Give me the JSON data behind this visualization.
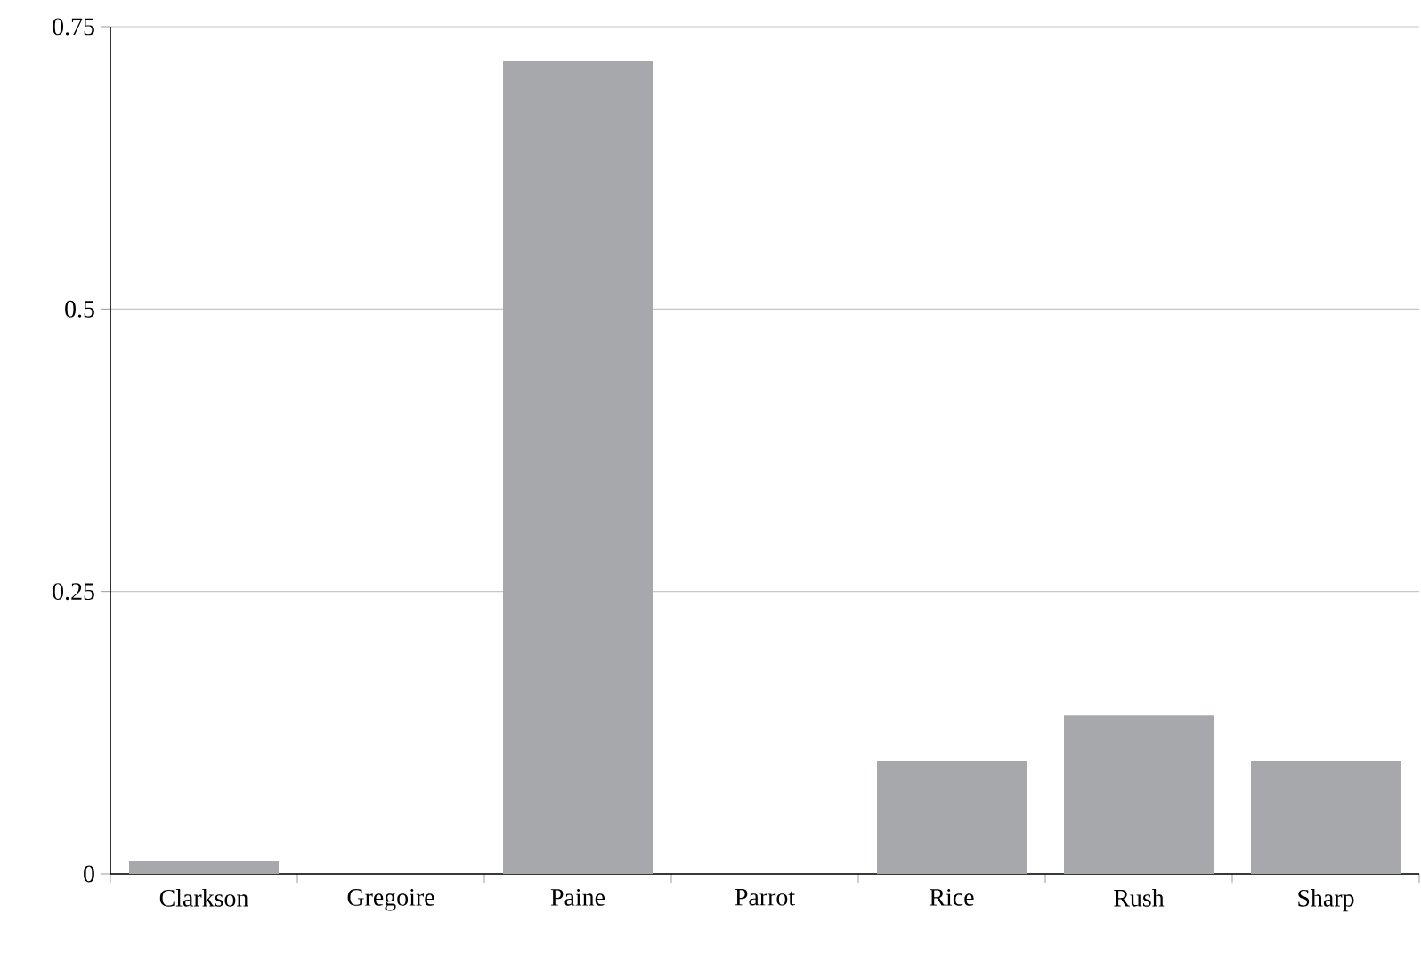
{
  "chart_data": {
    "type": "bar",
    "categories": [
      "Clarkson",
      "Gregoire",
      "Paine",
      "Parrot",
      "Rice",
      "Rush",
      "Sharp"
    ],
    "values": [
      0.011,
      0,
      0.72,
      0,
      0.1,
      0.14,
      0.1
    ],
    "color": "#a7a8ab",
    "ylim": [
      0,
      0.75
    ],
    "yticks": [
      0,
      0.25,
      0.5,
      0.75
    ],
    "grid": "y"
  }
}
